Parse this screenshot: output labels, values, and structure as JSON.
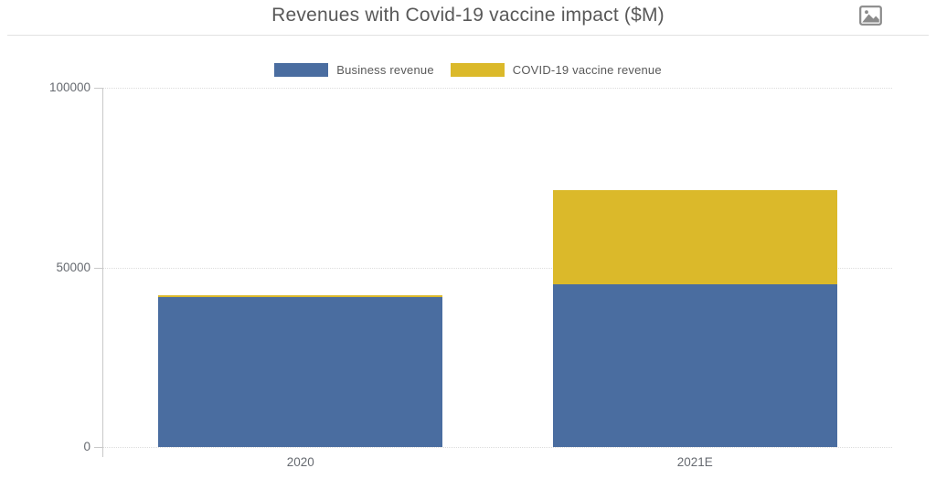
{
  "header": {
    "title": "Revenues with Covid-19 vaccine impact ($M)"
  },
  "toolbar": {
    "image_icon": "image-icon"
  },
  "legend": {
    "items": [
      {
        "label": "Business revenue",
        "color": "#4a6da0"
      },
      {
        "label": "COVID-19 vaccine revenue",
        "color": "#dbb92a"
      }
    ]
  },
  "chart_data": {
    "type": "bar",
    "stacked": true,
    "title": "Revenues with Covid-19 vaccine impact ($M)",
    "categories": [
      "2020",
      "2021E"
    ],
    "series": [
      {
        "name": "Business revenue",
        "color": "#4a6da0",
        "values": [
          41700,
          45300
        ]
      },
      {
        "name": "COVID-19 vaccine revenue",
        "color": "#dbb92a",
        "values": [
          500,
          26200
        ]
      }
    ],
    "totals": [
      42200,
      71500
    ],
    "xlabel": "",
    "ylabel": "",
    "ylim": [
      0,
      100000
    ],
    "yticks": [
      0,
      50000,
      100000
    ],
    "ytick_labels": [
      "0",
      "50000",
      "100000"
    ],
    "grid": "horizontal-dotted",
    "legend_position": "top-center"
  }
}
